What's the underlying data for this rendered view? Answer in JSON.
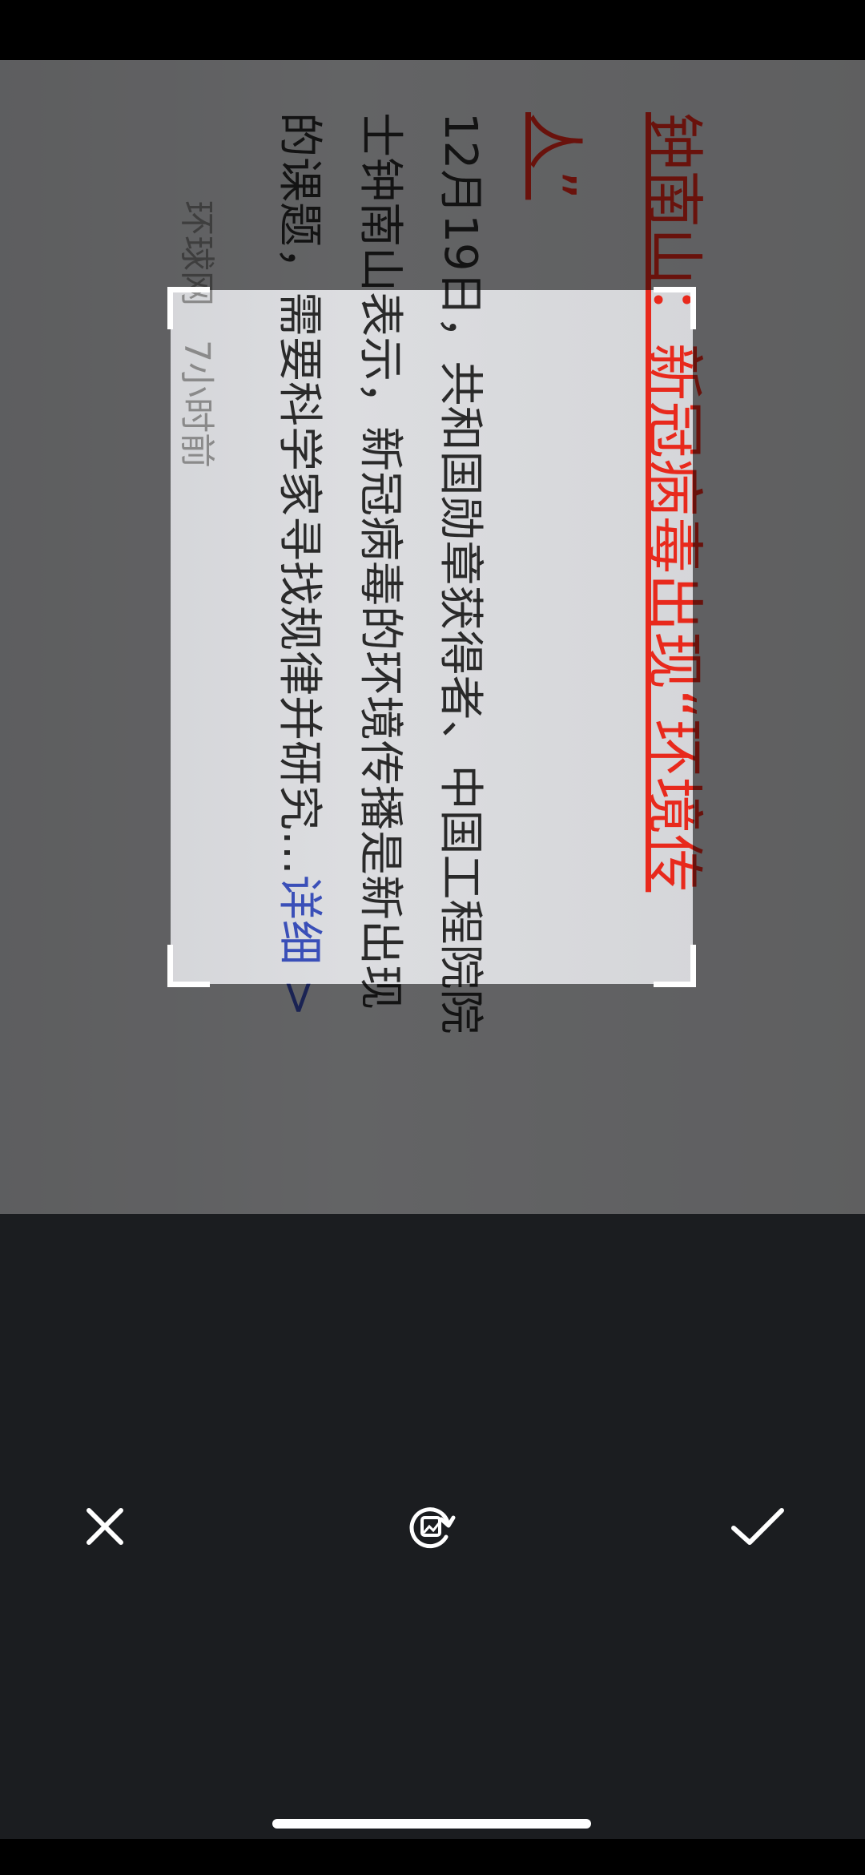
{
  "photo": {
    "title_lines": [
      "钟南山：新冠病毒出现“环境传",
      "人”"
    ],
    "body_lines": [
      "12月19日，共和国勋章获得者、中国工程院院",
      "士钟南山表示，新冠病毒的环境传播是新出现",
      "的课题，需要科学家寻找规律并研究…"
    ],
    "link": "详细 >",
    "source": "环球网",
    "time": "7小时前"
  }
}
